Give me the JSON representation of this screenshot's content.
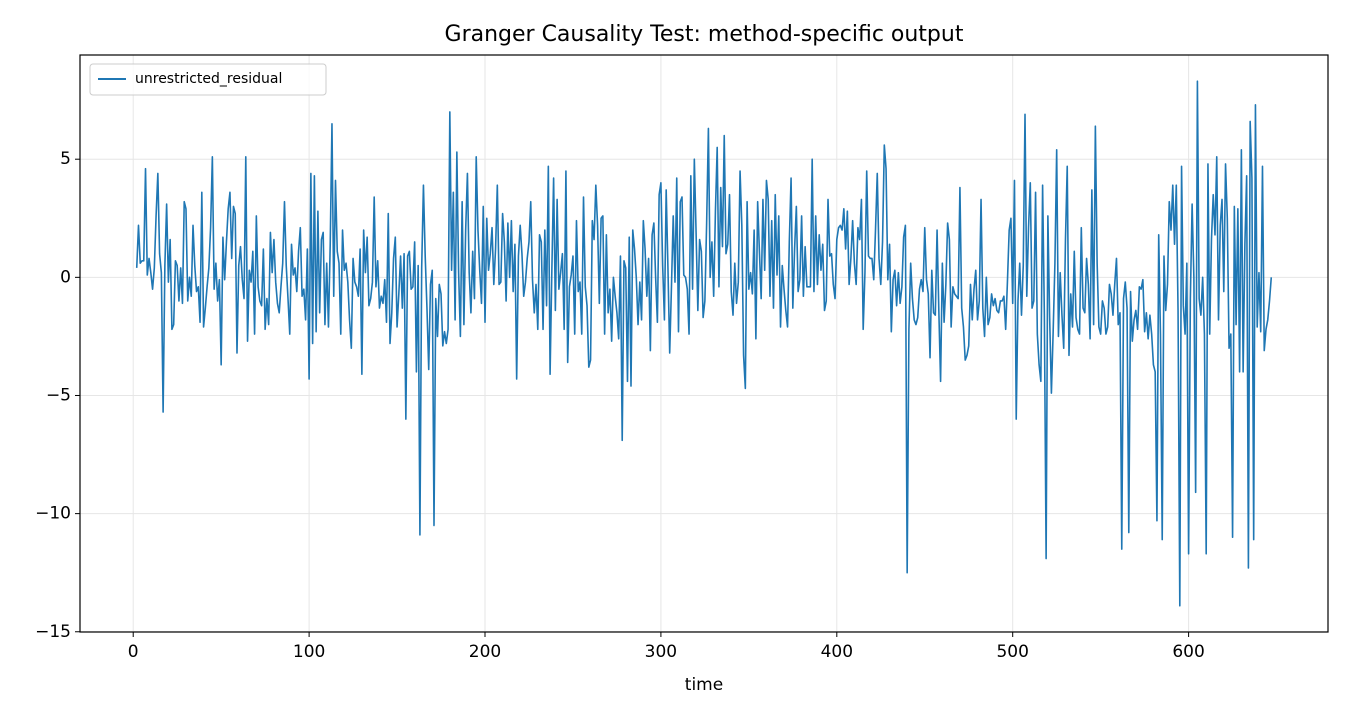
{
  "chart_data": {
    "type": "line",
    "title": "Granger Causality Test: method-specific output",
    "xlabel": "time",
    "legend": "upper left",
    "grid": true,
    "xlim": [
      -30.25,
      679.25
    ],
    "xticks": [
      0,
      100,
      200,
      300,
      400,
      500,
      600
    ],
    "ylim": [
      -15.01,
      9.41
    ],
    "yticks": [
      {
        "value": -15,
        "label": "−15"
      },
      {
        "value": -10,
        "label": "−10"
      },
      {
        "value": -5,
        "label": "−5"
      },
      0,
      5
    ],
    "x": [
      2,
      3,
      4,
      5,
      6,
      7,
      8,
      9,
      10,
      11,
      12,
      13,
      14,
      15,
      16,
      17,
      18,
      19,
      20,
      21,
      22,
      23,
      24,
      25,
      26,
      27,
      28,
      29,
      30,
      31,
      32,
      33,
      34,
      35,
      36,
      37,
      38,
      39,
      40,
      41,
      42,
      43,
      44,
      45,
      46,
      47,
      48,
      49,
      50,
      51,
      52,
      53,
      54,
      55,
      56,
      57,
      58,
      59,
      60,
      61,
      62,
      63,
      64,
      65,
      66,
      67,
      68,
      69,
      70,
      71,
      72,
      73,
      74,
      75,
      76,
      77,
      78,
      79,
      80,
      81,
      82,
      83,
      84,
      85,
      86,
      87,
      88,
      89,
      90,
      91,
      92,
      93,
      94,
      95,
      96,
      97,
      98,
      99,
      100,
      101,
      102,
      103,
      104,
      105,
      106,
      107,
      108,
      109,
      110,
      111,
      112,
      113,
      114,
      115,
      116,
      117,
      118,
      119,
      120,
      121,
      122,
      123,
      124,
      125,
      126,
      127,
      128,
      129,
      130,
      131,
      132,
      133,
      134,
      135,
      136,
      137,
      138,
      139,
      140,
      141,
      142,
      143,
      144,
      145,
      146,
      147,
      148,
      149,
      150,
      151,
      152,
      153,
      154,
      155,
      156,
      157,
      158,
      159,
      160,
      161,
      162,
      163,
      164,
      165,
      166,
      167,
      168,
      169,
      170,
      171,
      172,
      173,
      174,
      175,
      176,
      177,
      178,
      179,
      180,
      181,
      182,
      183,
      184,
      185,
      186,
      187,
      188,
      189,
      190,
      191,
      192,
      193,
      194,
      195,
      196,
      197,
      198,
      199,
      200,
      201,
      202,
      203,
      204,
      205,
      206,
      207,
      208,
      209,
      210,
      211,
      212,
      213,
      214,
      215,
      216,
      217,
      218,
      219,
      220,
      221,
      222,
      223,
      224,
      225,
      226,
      227,
      228,
      229,
      230,
      231,
      232,
      233,
      234,
      235,
      236,
      237,
      238,
      239,
      240,
      241,
      242,
      243,
      244,
      245,
      246,
      247,
      248,
      249,
      250,
      251,
      252,
      253,
      254,
      255,
      256,
      257,
      258,
      259,
      260,
      261,
      262,
      263,
      264,
      265,
      266,
      267,
      268,
      269,
      270,
      271,
      272,
      273,
      274,
      275,
      276,
      277,
      278,
      279,
      280,
      281,
      282,
      283,
      284,
      285,
      286,
      287,
      288,
      289,
      290,
      291,
      292,
      293,
      294,
      295,
      296,
      297,
      298,
      299,
      300,
      301,
      302,
      303,
      304,
      305,
      306,
      307,
      308,
      309,
      310,
      311,
      312,
      313,
      314,
      315,
      316,
      317,
      318,
      319,
      320,
      321,
      322,
      323,
      324,
      325,
      326,
      327,
      328,
      329,
      330,
      331,
      332,
      333,
      334,
      335,
      336,
      337,
      338,
      339,
      340,
      341,
      342,
      343,
      344,
      345,
      346,
      347,
      348,
      349,
      350,
      351,
      352,
      353,
      354,
      355,
      356,
      357,
      358,
      359,
      360,
      361,
      362,
      363,
      364,
      365,
      366,
      367,
      368,
      369,
      370,
      371,
      372,
      373,
      374,
      375,
      376,
      377,
      378,
      379,
      380,
      381,
      382,
      383,
      384,
      385,
      386,
      387,
      388,
      389,
      390,
      391,
      392,
      393,
      394,
      395,
      396,
      397,
      398,
      399,
      400,
      401,
      402,
      403,
      404,
      405,
      406,
      407,
      408,
      409,
      410,
      411,
      412,
      413,
      414,
      415,
      416,
      417,
      418,
      419,
      420,
      421,
      422,
      423,
      424,
      425,
      426,
      427,
      428,
      429,
      430,
      431,
      432,
      433,
      434,
      435,
      436,
      437,
      438,
      439,
      440,
      441,
      442,
      443,
      444,
      445,
      446,
      447,
      448,
      449,
      450,
      451,
      452,
      453,
      454,
      455,
      456,
      457,
      458,
      459,
      460,
      461,
      462,
      463,
      464,
      465,
      466,
      467,
      468,
      469,
      470,
      471,
      472,
      473,
      474,
      475,
      476,
      477,
      478,
      479,
      480,
      481,
      482,
      483,
      484,
      485,
      486,
      487,
      488,
      489,
      490,
      491,
      492,
      493,
      494,
      495,
      496,
      497,
      498,
      499,
      500,
      501,
      502,
      503,
      504,
      505,
      506,
      507,
      508,
      509,
      510,
      511,
      512,
      513,
      514,
      515,
      516,
      517,
      518,
      519,
      520,
      521,
      522,
      523,
      524,
      525,
      526,
      527,
      528,
      529,
      530,
      531,
      532,
      533,
      534,
      535,
      536,
      537,
      538,
      539,
      540,
      541,
      542,
      543,
      544,
      545,
      546,
      547,
      548,
      549,
      550,
      551,
      552,
      553,
      554,
      555,
      556,
      557,
      558,
      559,
      560,
      561,
      562,
      563,
      564,
      565,
      566,
      567,
      568,
      569,
      570,
      571,
      572,
      573,
      574,
      575,
      576,
      577,
      578,
      579,
      580,
      581,
      582,
      583,
      584,
      585,
      586,
      587,
      588,
      589,
      590,
      591,
      592,
      593,
      594,
      595,
      596,
      597,
      598,
      599,
      600,
      601,
      602,
      603,
      604,
      605,
      606,
      607,
      608,
      609,
      610,
      611,
      612,
      613,
      614,
      615,
      616,
      617,
      618,
      619,
      620,
      621,
      622,
      623,
      624,
      625,
      626,
      627,
      628,
      629,
      630,
      631,
      632,
      633,
      634,
      635,
      636,
      637,
      638,
      639,
      640,
      641,
      642,
      643,
      644,
      645,
      646,
      647
    ],
    "series": [
      {
        "name": "unrestricted_residual",
        "color": "#1f77b4",
        "values": [
          0.4,
          2.2,
          0.6,
          0.7,
          0.7,
          4.6,
          0.1,
          0.8,
          0.2,
          -0.5,
          0.4,
          2.6,
          4.4,
          1.0,
          0.2,
          -5.7,
          0.5,
          3.1,
          -0.2,
          1.6,
          -2.2,
          -2.0,
          0.7,
          0.5,
          -1.0,
          0.4,
          -1.1,
          3.2,
          2.9,
          -1.0,
          0.0,
          -0.8,
          2.2,
          0.5,
          -0.6,
          -0.4,
          -1.9,
          3.6,
          -2.1,
          -1.3,
          -0.4,
          0.4,
          2.1,
          5.1,
          -0.5,
          0.6,
          -1.0,
          -0.1,
          -3.7,
          1.7,
          -0.1,
          1.5,
          2.9,
          3.6,
          0.8,
          3.0,
          2.7,
          -3.2,
          0.5,
          1.3,
          -0.1,
          -0.9,
          5.1,
          -2.7,
          0.3,
          -0.2,
          1.1,
          -2.4,
          2.6,
          -0.4,
          -1.0,
          -1.2,
          1.2,
          -2.2,
          -0.9,
          -2.0,
          1.9,
          0.2,
          1.6,
          -0.2,
          -1.1,
          -1.5,
          -0.4,
          0.6,
          3.2,
          0.5,
          -0.9,
          -2.4,
          1.4,
          0.1,
          0.4,
          -0.6,
          1.1,
          2.1,
          -0.8,
          -0.5,
          -1.8,
          1.2,
          -4.3,
          4.4,
          -2.8,
          4.3,
          -2.3,
          2.8,
          -1.5,
          1.6,
          1.9,
          -2.0,
          0.6,
          -2.1,
          1.4,
          6.5,
          -0.8,
          4.1,
          1.1,
          0.6,
          -2.4,
          2.0,
          0.3,
          0.6,
          -0.2,
          -1.8,
          -3.0,
          0.8,
          -0.2,
          -0.4,
          -0.8,
          1.2,
          -4.1,
          2.0,
          0.2,
          1.7,
          -1.2,
          -0.9,
          -0.2,
          3.4,
          -0.4,
          0.7,
          -1.3,
          -0.8,
          -1.1,
          -0.1,
          -1.9,
          2.7,
          -2.8,
          -1.5,
          0.8,
          1.7,
          -2.1,
          -0.7,
          0.9,
          -1.3,
          1.0,
          -6.0,
          0.9,
          1.1,
          -0.5,
          -0.4,
          1.5,
          -4.0,
          0.5,
          -10.9,
          0.4,
          3.9,
          0.9,
          -1.3,
          -3.9,
          -0.3,
          0.3,
          -10.5,
          -0.9,
          -2.5,
          -0.3,
          -0.7,
          -2.9,
          -2.3,
          -2.8,
          -2.2,
          7.0,
          0.3,
          3.6,
          -1.8,
          5.3,
          0.2,
          -2.5,
          3.2,
          -2.0,
          2.0,
          4.4,
          0.2,
          -1.5,
          1.1,
          -0.9,
          5.1,
          2.0,
          0.3,
          -1.1,
          3.0,
          -1.9,
          2.5,
          0.3,
          1.0,
          2.1,
          -0.3,
          1.2,
          3.9,
          -0.3,
          -0.2,
          2.7,
          1.5,
          -1.0,
          2.3,
          0.0,
          2.4,
          -0.6,
          1.4,
          -4.3,
          0.9,
          2.2,
          1.0,
          -0.8,
          -0.2,
          0.8,
          1.5,
          3.2,
          -0.1,
          -1.5,
          -0.3,
          -2.2,
          1.8,
          1.5,
          -2.2,
          2.0,
          -1.2,
          4.7,
          -4.1,
          0.3,
          4.2,
          -1.4,
          3.3,
          -0.5,
          0.2,
          1.0,
          -2.2,
          4.5,
          -3.6,
          -0.4,
          0.1,
          0.9,
          -2.4,
          2.4,
          -0.6,
          -0.2,
          -2.4,
          3.4,
          -0.4,
          -1.2,
          -3.8,
          -3.5,
          2.4,
          1.6,
          3.9,
          2.2,
          -1.1,
          2.5,
          2.6,
          -2.4,
          1.8,
          -1.5,
          -0.5,
          -2.7,
          0.0,
          -0.8,
          -1.5,
          -2.6,
          0.9,
          -6.9,
          0.7,
          0.4,
          -4.4,
          1.7,
          -4.6,
          2.0,
          1.2,
          0.0,
          -2.0,
          -0.2,
          -1.8,
          2.4,
          1.2,
          -0.8,
          0.8,
          -3.1,
          1.8,
          2.3,
          0.0,
          -1.9,
          3.5,
          4.0,
          0.5,
          -1.8,
          3.7,
          0.4,
          -3.2,
          -0.4,
          2.6,
          -0.2,
          4.2,
          -2.3,
          3.2,
          3.4,
          0.1,
          0.0,
          -0.5,
          -2.4,
          4.3,
          -0.5,
          5.0,
          1.9,
          -1.4,
          1.6,
          1.1,
          -1.7,
          -1.0,
          2.3,
          6.3,
          0.0,
          1.5,
          -0.8,
          2.8,
          5.5,
          -0.4,
          3.8,
          1.3,
          6.0,
          1.0,
          1.4,
          3.5,
          -0.6,
          -1.6,
          0.6,
          -1.1,
          -0.2,
          4.5,
          2.2,
          -3.3,
          -4.7,
          3.2,
          -0.5,
          0.2,
          -0.7,
          2.0,
          -2.6,
          3.2,
          1.1,
          -0.9,
          3.3,
          0.3,
          4.1,
          3.3,
          -0.8,
          2.4,
          -1.3,
          3.5,
          0.1,
          2.6,
          -2.1,
          0.5,
          -0.5,
          -1.4,
          -2.1,
          1.5,
          4.2,
          -1.3,
          1.2,
          3.0,
          -0.6,
          -0.1,
          2.6,
          -0.8,
          1.3,
          -0.4,
          -0.4,
          -0.4,
          5.0,
          -0.6,
          2.6,
          -0.3,
          1.8,
          0.3,
          1.4,
          -1.4,
          -1.0,
          3.3,
          0.9,
          1.0,
          -0.3,
          -0.9,
          1.6,
          2.1,
          2.2,
          2.0,
          2.9,
          1.2,
          2.8,
          -0.3,
          0.8,
          2.4,
          0.6,
          -0.3,
          2.1,
          1.6,
          3.3,
          -2.2,
          0.2,
          4.5,
          0.9,
          0.8,
          0.8,
          -0.1,
          2.0,
          4.4,
          0.8,
          -0.3,
          1.5,
          5.6,
          4.6,
          -0.1,
          1.4,
          -2.3,
          -0.1,
          0.3,
          -1.2,
          0.2,
          -1.1,
          -0.4,
          1.7,
          2.2,
          -12.5,
          -2.2,
          0.6,
          -0.9,
          -1.8,
          -2.0,
          -1.7,
          -0.5,
          -0.1,
          -0.6,
          2.1,
          -0.1,
          -0.7,
          -3.4,
          0.3,
          -1.5,
          -1.6,
          2.0,
          -1.4,
          -4.4,
          0.6,
          -1.9,
          -0.3,
          2.3,
          1.6,
          -2.1,
          -0.4,
          -0.7,
          -0.8,
          -0.9,
          3.8,
          -1.3,
          -2.1,
          -3.5,
          -3.3,
          -2.9,
          -0.3,
          -1.8,
          -0.5,
          0.3,
          -1.8,
          -1.0,
          3.3,
          -1.3,
          -2.5,
          0.0,
          -2.0,
          -1.7,
          -0.7,
          -1.2,
          -0.9,
          -1.4,
          -1.5,
          -1.0,
          -1.0,
          -0.8,
          -2.2,
          -0.2,
          2.0,
          2.5,
          -1.1,
          4.1,
          -6.0,
          -1.0,
          0.6,
          -1.6,
          0.5,
          6.9,
          -0.8,
          2.1,
          4.0,
          -1.3,
          -1.0,
          3.6,
          -2.4,
          -3.7,
          -4.4,
          3.9,
          -1.6,
          -11.9,
          2.6,
          -1.7,
          -4.9,
          -2.3,
          0.6,
          5.4,
          -2.5,
          0.2,
          -1.6,
          -3.0,
          1.6,
          4.7,
          -3.3,
          -0.7,
          -2.1,
          1.1,
          -1.7,
          -2.2,
          -2.4,
          2.1,
          -1.3,
          -1.5,
          0.8,
          -0.3,
          -2.6,
          3.7,
          -2.0,
          6.4,
          0.6,
          -2.1,
          -2.4,
          -1.0,
          -1.3,
          -2.4,
          -2.1,
          -0.3,
          -0.7,
          -1.6,
          -0.3,
          0.8,
          -2.0,
          -1.5,
          -11.5,
          -0.9,
          -0.2,
          -1.3,
          -10.8,
          -0.6,
          -2.7,
          -1.8,
          -1.4,
          -2.2,
          -0.4,
          -0.5,
          -0.1,
          -2.3,
          -1.5,
          -2.6,
          -1.6,
          -2.4,
          -3.7,
          -4.0,
          -10.3,
          1.8,
          -2.4,
          -11.1,
          0.9,
          -1.4,
          -0.3,
          3.2,
          2.0,
          3.9,
          1.4,
          3.9,
          -1.4,
          -13.9,
          4.7,
          -1.2,
          -2.4,
          0.6,
          -11.7,
          -0.9,
          3.1,
          0.0,
          -9.1,
          8.3,
          -0.9,
          -1.6,
          0.0,
          -2.4,
          -11.7,
          4.8,
          -2.4,
          1.6,
          3.5,
          1.8,
          5.1,
          -1.8,
          2.2,
          3.3,
          -0.6,
          4.8,
          2.5,
          -3.0,
          -2.4,
          -11.0,
          3.0,
          -2.0,
          2.9,
          -4.0,
          5.4,
          -4.0,
          1.4,
          4.3,
          -12.3,
          6.6,
          4.2,
          -11.1,
          7.3,
          -2.1,
          0.2,
          -2.3,
          4.7,
          -3.1,
          -2.2,
          -1.8,
          -1.0,
          0.0
        ]
      }
    ]
  }
}
